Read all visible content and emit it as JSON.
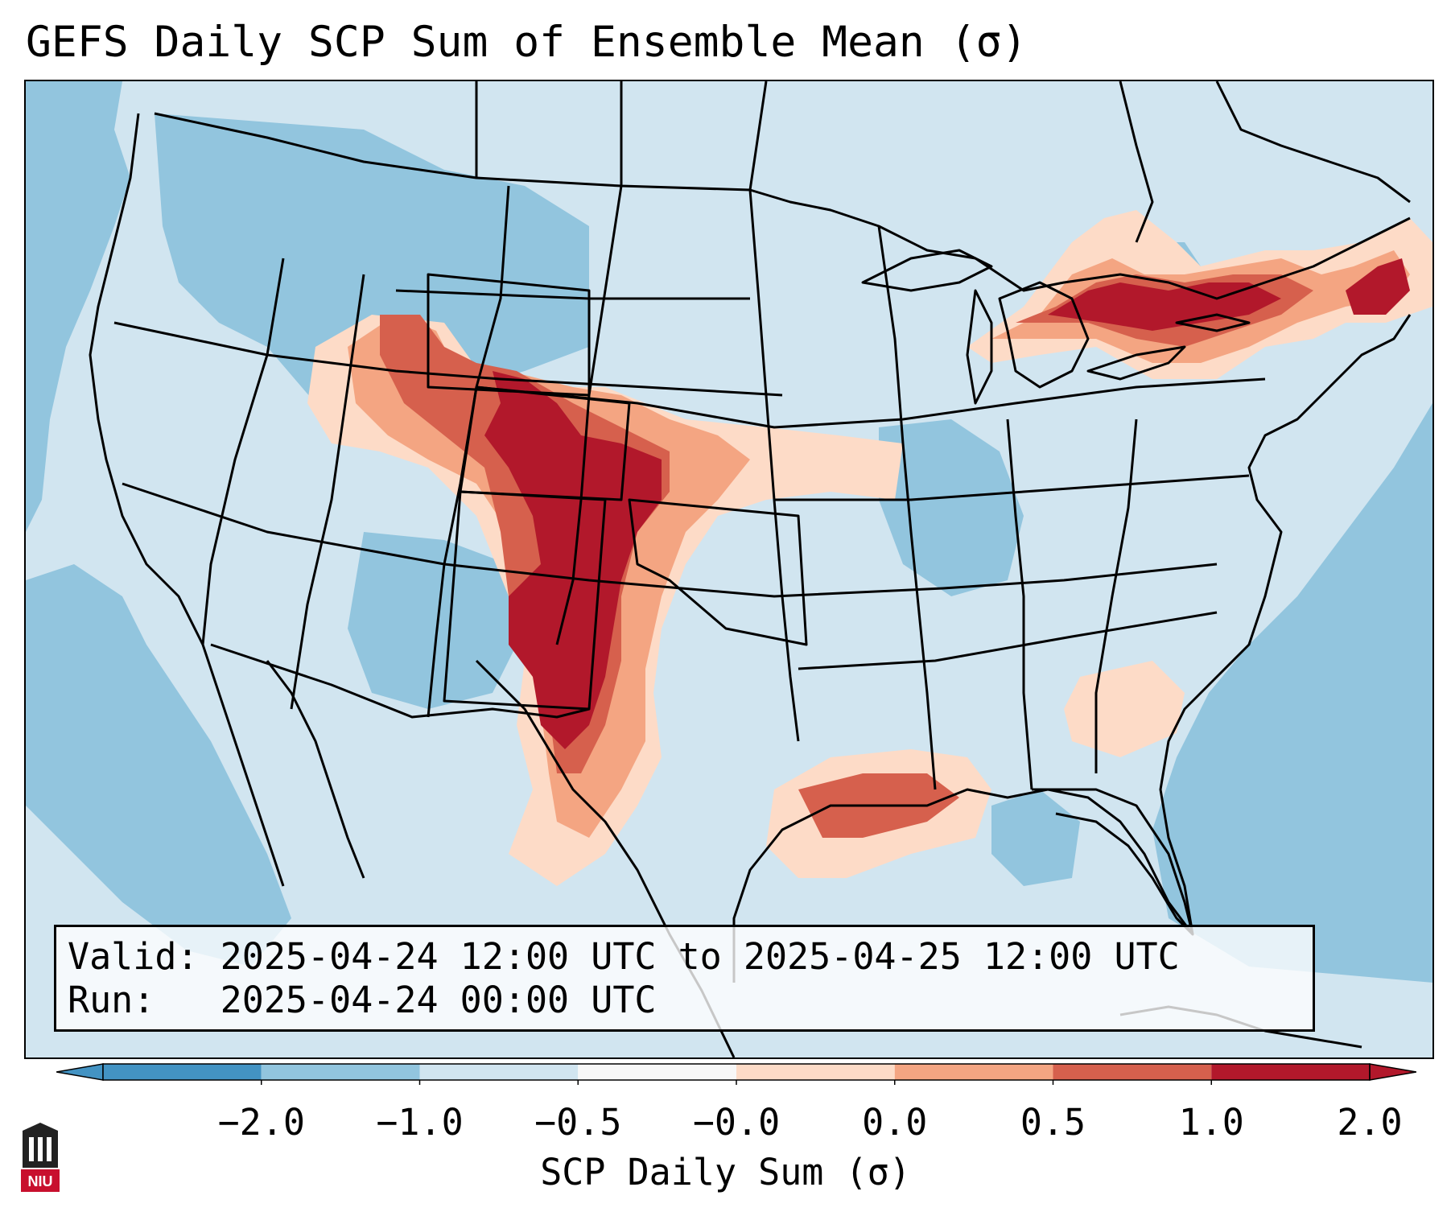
{
  "title": "GEFS Daily SCP Sum of Ensemble Mean (σ)",
  "info": {
    "valid_label": "Valid:",
    "valid_value": "2025-04-24 12:00 UTC to 2025-04-25 12:00 UTC",
    "run_label": "Run:",
    "run_value": "2025-04-24 00:00 UTC"
  },
  "colorbar": {
    "label": "SCP Daily Sum (σ)",
    "ticks": [
      "−2.0",
      "−1.0",
      "−0.5",
      "−0.0",
      "0.0",
      "0.5",
      "1.0",
      "2.0"
    ],
    "bin_colors": [
      "#4393c3",
      "#92c5de",
      "#d1e5f0",
      "#f7f7f7",
      "#fddbc7",
      "#f4a582",
      "#d6604d",
      "#b2182b"
    ],
    "extend": "both"
  },
  "colors": {
    "neg_strong": "#4393c3",
    "neg_mid": "#92c5de",
    "neg_light": "#d1e5f0",
    "neutral": "#f7f7f7",
    "pos_light": "#fddbc7",
    "pos_mid": "#f4a582",
    "pos_high": "#d6604d",
    "pos_max": "#b2182b"
  },
  "logo": {
    "text": "NIU",
    "icon": "university-building-icon"
  }
}
